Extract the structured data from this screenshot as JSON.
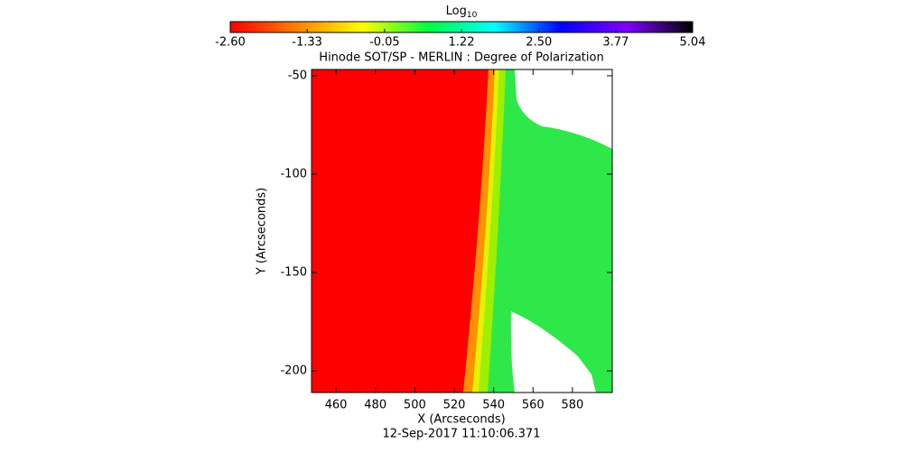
{
  "chart_data": {
    "type": "image",
    "title": "Hinode SOT/SP - MERLIN : Degree of Polarization",
    "x_label": "X (Arcseconds)",
    "y_label": "Y (Arcseconds)",
    "footer": "12-Sep-2017 11:10:06.371",
    "xlim": [
      447.6,
      600.2
    ],
    "xticks": [
      460,
      480,
      500,
      520,
      540,
      560,
      580
    ],
    "ylim": [
      -211,
      -46.8
    ],
    "yticks": [
      -200,
      -150,
      -100,
      -50
    ],
    "colorbar": {
      "label": "Log",
      "label_sub": "10",
      "lim": [
        -2.6,
        5.04
      ],
      "ticks": [
        {
          "value": -2.6,
          "label": "-2.60"
        },
        {
          "value": -1.33,
          "label": "-1.33"
        },
        {
          "value": -0.05,
          "label": "-0.05"
        },
        {
          "value": 1.22,
          "label": "1.22"
        },
        {
          "value": 2.5,
          "label": "2.50"
        },
        {
          "value": 3.77,
          "label": "3.77"
        },
        {
          "value": 5.04,
          "label": "5.04"
        }
      ],
      "colors": [
        "#ff0000",
        "#ff8000",
        "#ffff00",
        "#00ff40",
        "#00ffff",
        "#0000ff",
        "#8000ff",
        "#000000"
      ]
    }
  }
}
